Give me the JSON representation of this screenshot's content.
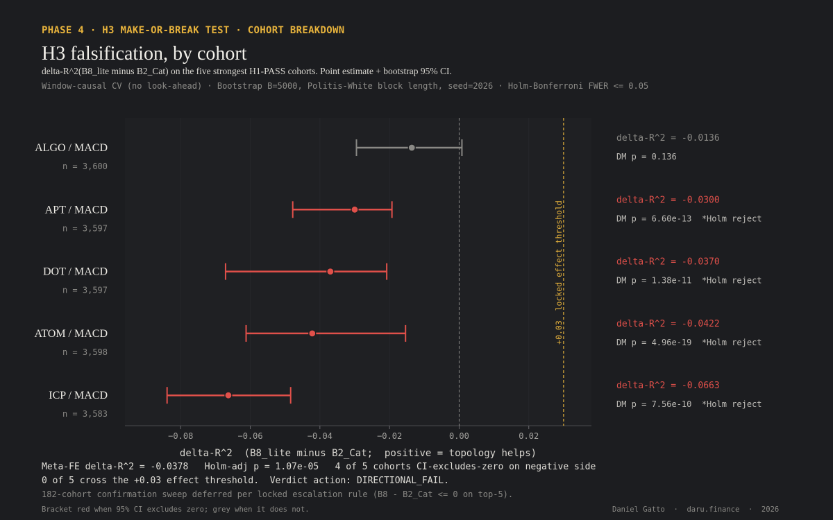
{
  "header": {
    "kicker": "PHASE 4  ·  H3 MAKE-OR-BREAK TEST  ·  COHORT BREAKDOWN",
    "title": "H3 falsification, by cohort",
    "subtitle": "delta-R^2(B8_lite minus B2_Cat) on the five strongest H1-PASS cohorts.  Point estimate + bootstrap 95% CI.",
    "method": "Window-causal CV (no look-ahead)  ·  Bootstrap B=5000, Politis-White block length, seed=2026  ·  Holm-Bonferroni FWER <= 0.05"
  },
  "chart_data": {
    "type": "forest",
    "xlabel": "delta-R^2  (B8_lite minus B2_Cat;  positive = topology helps)",
    "xlim": [
      -0.096,
      0.038
    ],
    "xticks": [
      -0.08,
      -0.06,
      -0.04,
      -0.02,
      0.0,
      0.02
    ],
    "xtick_labels": [
      "−0.08",
      "−0.06",
      "−0.04",
      "−0.02",
      "0.00",
      "0.02"
    ],
    "zero_line": 0.0,
    "threshold": {
      "value": 0.03,
      "label": "+0.03  locked effect threshold"
    },
    "cohorts": [
      {
        "name": "ALGO / MACD",
        "n_label": "n = 3,600",
        "estimate": -0.0136,
        "ci": [
          -0.0295,
          0.0008
        ],
        "delta_label": "delta-R^2 = -0.0136",
        "dm_label": "DM p = 0.136",
        "excludes_zero": false
      },
      {
        "name": "APT / MACD",
        "n_label": "n = 3,597",
        "estimate": -0.03,
        "ci": [
          -0.0478,
          -0.0193
        ],
        "delta_label": "delta-R^2 = -0.0300",
        "dm_label": "DM p = 6.60e-13  *Holm reject",
        "excludes_zero": true
      },
      {
        "name": "DOT / MACD",
        "n_label": "n = 3,597",
        "estimate": -0.037,
        "ci": [
          -0.0671,
          -0.0208
        ],
        "delta_label": "delta-R^2 = -0.0370",
        "dm_label": "DM p = 1.38e-11  *Holm reject",
        "excludes_zero": true
      },
      {
        "name": "ATOM / MACD",
        "n_label": "n = 3,598",
        "estimate": -0.0422,
        "ci": [
          -0.0612,
          -0.0154
        ],
        "delta_label": "delta-R^2 = -0.0422",
        "dm_label": "DM p = 4.96e-19  *Holm reject",
        "excludes_zero": true
      },
      {
        "name": "ICP / MACD",
        "n_label": "n = 3,583",
        "estimate": -0.0663,
        "ci": [
          -0.0839,
          -0.0484
        ],
        "delta_label": "delta-R^2 = -0.0663",
        "dm_label": "DM p = 7.56e-10  *Holm reject",
        "excludes_zero": true
      }
    ],
    "colors": {
      "reject": "#e0504a",
      "neutral": "#8a8985",
      "threshold": "#e6b23c",
      "zero": "#8a8985"
    }
  },
  "footer": {
    "meta_line1": "Meta-FE delta-R^2 = -0.0378   Holm-adj p = 1.07e-05   4 of 5 cohorts CI-excludes-zero on negative side",
    "meta_line2": "0 of 5 cross the +0.03 effect threshold.  Verdict action: DIRECTIONAL_FAIL.",
    "meta_line3": "182-cohort confirmation sweep deferred per locked escalation rule (B8 - B2_Cat <= 0 on top-5).",
    "note": "Bracket red when 95% CI excludes zero; grey when it does not.",
    "credit": "Daniel Gatto  ·  daru.finance  ·  2026"
  }
}
